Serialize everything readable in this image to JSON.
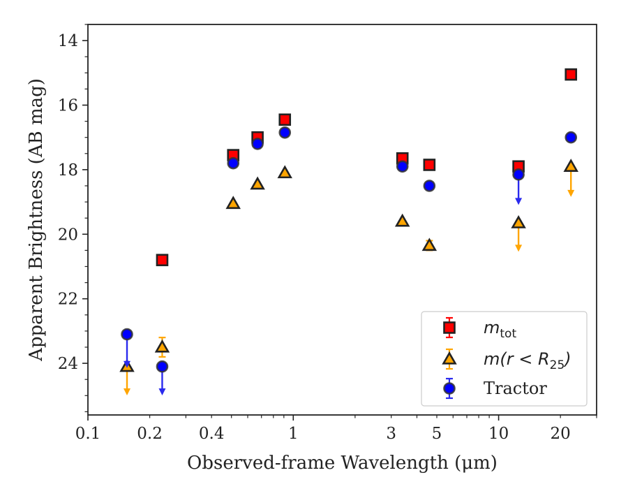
{
  "chart_data": {
    "type": "scatter",
    "xlabel": "Observed-frame Wavelength (μm)",
    "ylabel": "Apparent Brightness (AB mag)",
    "x_scale": "log",
    "xlim": [
      0.1,
      30
    ],
    "ylim": [
      25.6,
      13.5
    ],
    "y_inverted": true,
    "grid": false,
    "legend_position": "lower-right",
    "x_ticks": [
      {
        "value": 0.1,
        "label": "0.1"
      },
      {
        "value": 0.2,
        "label": "0.2"
      },
      {
        "value": 0.4,
        "label": "0.4"
      },
      {
        "value": 1,
        "label": "1"
      },
      {
        "value": 3,
        "label": "3"
      },
      {
        "value": 5,
        "label": "5"
      },
      {
        "value": 10,
        "label": "10"
      },
      {
        "value": 20,
        "label": "20"
      }
    ],
    "y_ticks": [
      {
        "value": 14,
        "label": "14"
      },
      {
        "value": 16,
        "label": "16"
      },
      {
        "value": 18,
        "label": "18"
      },
      {
        "value": 20,
        "label": "20"
      },
      {
        "value": 22,
        "label": "22"
      },
      {
        "value": 24,
        "label": "24"
      }
    ],
    "series": [
      {
        "name": "m_tot",
        "legend_main": "m",
        "legend_sub": "tot",
        "marker": "square",
        "color": "#ff0000",
        "edge_color": "#222222",
        "error_color": "#ff0000",
        "points": [
          {
            "x": 0.23,
            "y": 20.8
          },
          {
            "x": 0.51,
            "y": 17.55
          },
          {
            "x": 0.67,
            "y": 17.0
          },
          {
            "x": 0.91,
            "y": 16.45
          },
          {
            "x": 3.4,
            "y": 17.65
          },
          {
            "x": 4.6,
            "y": 17.85
          },
          {
            "x": 12.5,
            "y": 17.9
          },
          {
            "x": 22.5,
            "y": 15.05
          }
        ]
      },
      {
        "name": "m(r < R25)",
        "legend_main": "m(r < R",
        "legend_sub": "25",
        "legend_close": ")",
        "marker": "triangle",
        "color": "#ffa500",
        "edge_color": "#222222",
        "error_color": "#ffa500",
        "points": [
          {
            "x": 0.155,
            "y": 24.1,
            "upper_limit_to": 24.95
          },
          {
            "x": 0.23,
            "y": 23.5,
            "yerr": 0.3
          },
          {
            "x": 0.51,
            "y": 19.05
          },
          {
            "x": 0.67,
            "y": 18.45
          },
          {
            "x": 0.91,
            "y": 18.1
          },
          {
            "x": 3.4,
            "y": 19.6
          },
          {
            "x": 4.6,
            "y": 20.35,
            "yerr": 0.15
          },
          {
            "x": 12.5,
            "y": 19.65,
            "upper_limit_to": 20.5
          },
          {
            "x": 22.5,
            "y": 17.9,
            "upper_limit_to": 18.8
          }
        ]
      },
      {
        "name": "Tractor",
        "marker": "circle",
        "color": "#0000ff",
        "edge_color": "#333333",
        "error_color": "#2a2aee",
        "points": [
          {
            "x": 0.155,
            "y": 23.1,
            "upper_limit_to": 24.1
          },
          {
            "x": 0.23,
            "y": 24.1,
            "upper_limit_to": 24.95
          },
          {
            "x": 0.51,
            "y": 17.8
          },
          {
            "x": 0.67,
            "y": 17.2
          },
          {
            "x": 0.91,
            "y": 16.85
          },
          {
            "x": 3.4,
            "y": 17.9
          },
          {
            "x": 4.6,
            "y": 18.5
          },
          {
            "x": 12.5,
            "y": 18.15,
            "upper_limit_to": 19.05
          },
          {
            "x": 22.5,
            "y": 17.0
          }
        ]
      }
    ]
  }
}
